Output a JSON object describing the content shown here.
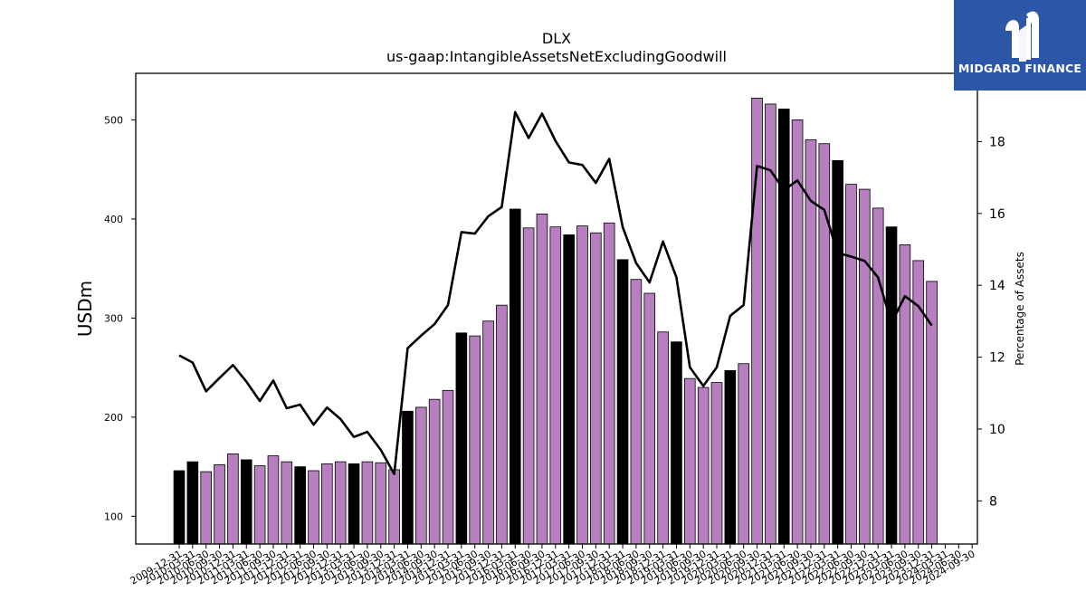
{
  "brand": {
    "name": "MIDGARD FINANCE",
    "bg_color": "#2c57a6"
  },
  "chart_data": {
    "type": "bar",
    "title": "DLX",
    "subtitle": "us-gaap:IntangibleAssetsNetExcludingGoodwill",
    "ylabel": "USDm",
    "y2label": "Percentage of Assets",
    "ylim": [
      72,
      547
    ],
    "y2lim": [
      6.8,
      19.9
    ],
    "yticks": [
      100,
      200,
      300,
      400,
      500
    ],
    "y2ticks": [
      8,
      10,
      12,
      14,
      16,
      18
    ],
    "colors": {
      "annual": "#000000",
      "quarter": "#b77fc0",
      "line": "#000000"
    },
    "categories": [
      "2009-12-31",
      "2010-03-31",
      "2010-06-30",
      "2010-09-30",
      "2010-12-31",
      "2011-03-31",
      "2011-06-30",
      "2011-09-30",
      "2011-12-31",
      "2012-03-31",
      "2012-06-30",
      "2012-09-30",
      "2012-12-31",
      "2013-03-31",
      "2013-06-30",
      "2013-09-30",
      "2013-12-31",
      "2014-03-31",
      "2014-06-30",
      "2014-09-30",
      "2014-12-31",
      "2015-03-31",
      "2015-06-30",
      "2015-09-30",
      "2015-12-31",
      "2016-03-31",
      "2016-06-30",
      "2016-09-30",
      "2016-12-31",
      "2017-03-31",
      "2017-06-30",
      "2017-09-30",
      "2017-12-31",
      "2018-03-31",
      "2018-06-30",
      "2018-09-30",
      "2018-12-31",
      "2019-03-31",
      "2019-06-30",
      "2019-09-30",
      "2019-12-31",
      "2020-03-31",
      "2020-06-30",
      "2020-09-30",
      "2020-12-31",
      "2021-03-31",
      "2021-06-30",
      "2021-09-30",
      "2021-12-31",
      "2022-03-31",
      "2022-06-30",
      "2022-09-30",
      "2022-12-31",
      "2023-03-31",
      "2023-06-30",
      "2023-09-30",
      "2023-12-31",
      "2024-03-31",
      "2024-06-30",
      "2024-09-30"
    ],
    "tick_labels": [
      "2009-12-31",
      "2010-03-31",
      "2010-06-30",
      "2010-09-30",
      "2010-12-31",
      "2011-03-31",
      "2011-06-30",
      "2011-09-30",
      "2011-12-31",
      "2012-03-31",
      "2012-06-30",
      "2012-09-30",
      "2012-12-31",
      "2013-03-31",
      "2013-06-30",
      "2013-09-30",
      "2013-12-31",
      "2014-03-31",
      "2014-06-30",
      "2014-09-30",
      "2014-12-31",
      "2015-03-31",
      "2015-06-30",
      "2015-09-30",
      "2015-12-31",
      "2016-03-31",
      "2016-06-30",
      "2016-09-30",
      "2016-12-31",
      "2017-03-31",
      "2017-06-30",
      "2017-09-30",
      "2017-12-31",
      "2018-03-31",
      "2018-06-30",
      "2018-09-30",
      "2018-12-31",
      "2019-03-31",
      "2019-06-30",
      "2019-09-30",
      "2019-12-31",
      "2020-03-31",
      "2020-06-30",
      "2020-09-30",
      "2020-12-31",
      "2021-03-31",
      "2021-06-30",
      "2021-09-30",
      "2021-12-31",
      "2022-03-31",
      "2022-06-30",
      "2022-09-30",
      "2022-12-31",
      "2023-03-31",
      "2023-06-30",
      "2023-09-30",
      "2023-12-31",
      "2024-03-31",
      "2024-06-30",
      "2024-09-30"
    ],
    "annual_flags": [
      1,
      1,
      0,
      0,
      0,
      1,
      0,
      0,
      0,
      1,
      0,
      0,
      0,
      1,
      0,
      0,
      0,
      1,
      0,
      0,
      0,
      1,
      0,
      0,
      0,
      1,
      0,
      0,
      0,
      1,
      0,
      0,
      0,
      1,
      0,
      0,
      0,
      1,
      0,
      0,
      0,
      1,
      0,
      0,
      0,
      1,
      0,
      0,
      0,
      1,
      0,
      0,
      0,
      1,
      0,
      0,
      0,
      1,
      0,
      0
    ],
    "series": [
      {
        "type": "bar",
        "values": [
          146,
          155,
          145,
          152,
          163,
          157,
          151,
          161,
          155,
          150,
          146,
          153,
          155,
          153,
          155,
          154,
          147,
          206,
          210,
          218,
          227,
          285,
          282,
          297,
          313,
          410,
          391,
          405,
          392,
          384,
          393,
          386,
          396,
          359,
          339,
          325,
          286,
          276,
          239,
          230,
          235,
          247,
          254,
          522,
          516,
          511,
          500,
          480,
          476,
          459,
          435,
          430,
          411,
          392,
          374,
          358,
          337,
          null,
          null,
          null
        ]
      },
      {
        "type": "line",
        "axis": "right",
        "values": [
          12.05,
          11.85,
          11.05,
          11.42,
          11.78,
          11.32,
          10.78,
          11.35,
          10.58,
          10.68,
          10.12,
          10.6,
          10.28,
          9.78,
          9.92,
          9.42,
          8.75,
          12.25,
          12.6,
          12.92,
          13.45,
          15.48,
          15.44,
          15.92,
          16.18,
          18.82,
          18.1,
          18.78,
          18.02,
          17.42,
          17.35,
          16.85,
          17.52,
          15.62,
          14.62,
          14.08,
          15.22,
          14.22,
          11.72,
          11.2,
          11.72,
          13.15,
          13.45,
          17.32,
          17.2,
          16.65,
          16.92,
          16.35,
          16.1,
          14.9,
          14.8,
          14.68,
          14.22,
          12.95,
          13.7,
          13.42,
          12.88,
          null,
          null,
          null
        ]
      }
    ]
  }
}
